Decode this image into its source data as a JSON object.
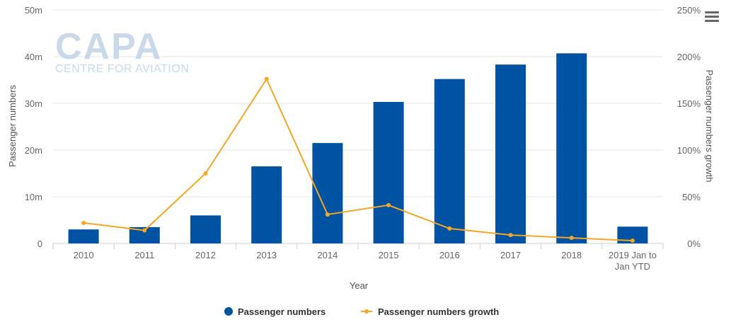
{
  "logo": {
    "main": "CAPA",
    "sub": "CENTRE FOR AVIATION"
  },
  "menu": {
    "icon": "hamburger-menu-icon"
  },
  "chart_data": {
    "type": "bar+line",
    "categories": [
      "2010",
      "2011",
      "2012",
      "2013",
      "2014",
      "2015",
      "2016",
      "2017",
      "2018",
      "2019 Jan to Jan YTD"
    ],
    "category_lines": [
      [
        "2010"
      ],
      [
        "2011"
      ],
      [
        "2012"
      ],
      [
        "2013"
      ],
      [
        "2014"
      ],
      [
        "2015"
      ],
      [
        "2016"
      ],
      [
        "2017"
      ],
      [
        "2018"
      ],
      [
        "2019 Jan to",
        "Jan YTD"
      ]
    ],
    "series": [
      {
        "name": "Passenger numbers",
        "kind": "bar",
        "axis": "left",
        "color": "#0052a3",
        "values": [
          3.0,
          3.5,
          6.0,
          16.5,
          21.5,
          30.3,
          35.2,
          38.3,
          40.7,
          3.6
        ]
      },
      {
        "name": "Passenger numbers growth",
        "kind": "line",
        "axis": "right",
        "color": "#f5a623",
        "values": [
          22,
          14,
          75,
          176,
          31,
          41,
          16,
          9,
          6,
          3
        ]
      }
    ],
    "xlabel": "Year",
    "ylabel": "Passenger numbers",
    "y2label": "Passenger numbers growth",
    "ylim": [
      0,
      50
    ],
    "y2lim": [
      0,
      250
    ],
    "yticks": [
      "0",
      "10m",
      "20m",
      "30m",
      "40m",
      "50m"
    ],
    "y2ticks": [
      "0%",
      "50%",
      "100%",
      "150%",
      "200%",
      "250%"
    ],
    "grid": true,
    "legend_position": "bottom-center"
  }
}
